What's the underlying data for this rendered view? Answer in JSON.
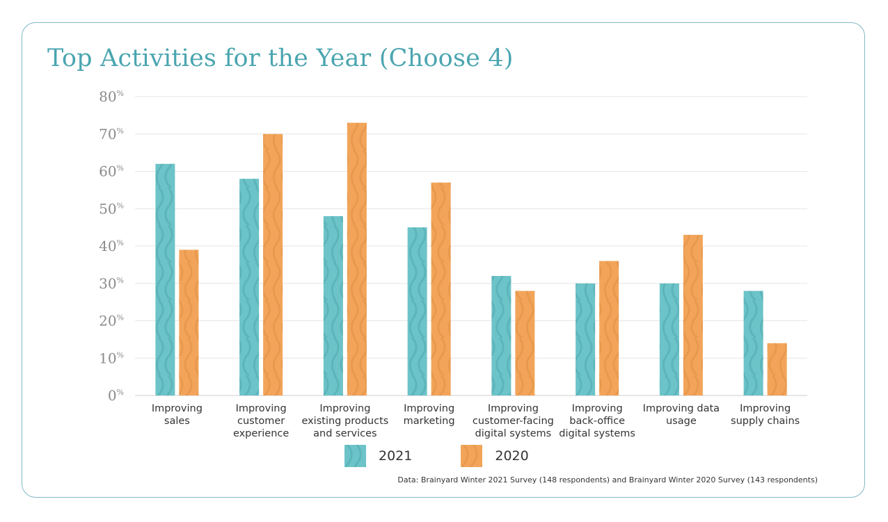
{
  "colors": {
    "series_2021": "#6cc3c8",
    "series_2020": "#f2a55a",
    "title": "#4aa5b0",
    "axis_text": "#8a8a8a",
    "grid": "#e6e6e6",
    "border": "#7fb9c3"
  },
  "chart_data": {
    "type": "bar",
    "title": "Top Activities for the Year (Choose 4)",
    "xlabel": "",
    "ylabel": "",
    "ylim": [
      0,
      80
    ],
    "yticks": [
      {
        "value": 0,
        "num": "0",
        "suffix": "%"
      },
      {
        "value": 10,
        "num": "10",
        "suffix": "%"
      },
      {
        "value": 20,
        "num": "20",
        "suffix": "%"
      },
      {
        "value": 30,
        "num": "30",
        "suffix": "%"
      },
      {
        "value": 40,
        "num": "40",
        "suffix": "%"
      },
      {
        "value": 50,
        "num": "50",
        "suffix": "%"
      },
      {
        "value": 60,
        "num": "60",
        "suffix": "%"
      },
      {
        "value": 70,
        "num": "70",
        "suffix": "%"
      },
      {
        "value": 80,
        "num": "80",
        "suffix": "%"
      }
    ],
    "categories": [
      [
        "Improving",
        "sales"
      ],
      [
        "Improving",
        "customer",
        "experience"
      ],
      [
        "Improving",
        "existing products",
        "and services"
      ],
      [
        "Improving",
        "marketing"
      ],
      [
        "Improving",
        "customer-facing",
        "digital systems"
      ],
      [
        "Improving",
        "back-office",
        "digital systems"
      ],
      [
        "Improving data",
        "usage"
      ],
      [
        "Improving",
        "supply chains"
      ]
    ],
    "series": [
      {
        "name": "2021",
        "values": [
          62,
          58,
          48,
          45,
          32,
          30,
          30,
          28
        ]
      },
      {
        "name": "2020",
        "values": [
          39,
          70,
          73,
          57,
          28,
          36,
          43,
          14
        ]
      }
    ],
    "legend_position": "bottom"
  },
  "legend": {
    "label_2021": "2021",
    "label_2020": "2020"
  },
  "source_note": "Data: Brainyard Winter 2021 Survey (148 respondents) and Brainyard Winter 2020 Survey (143 respondents)"
}
